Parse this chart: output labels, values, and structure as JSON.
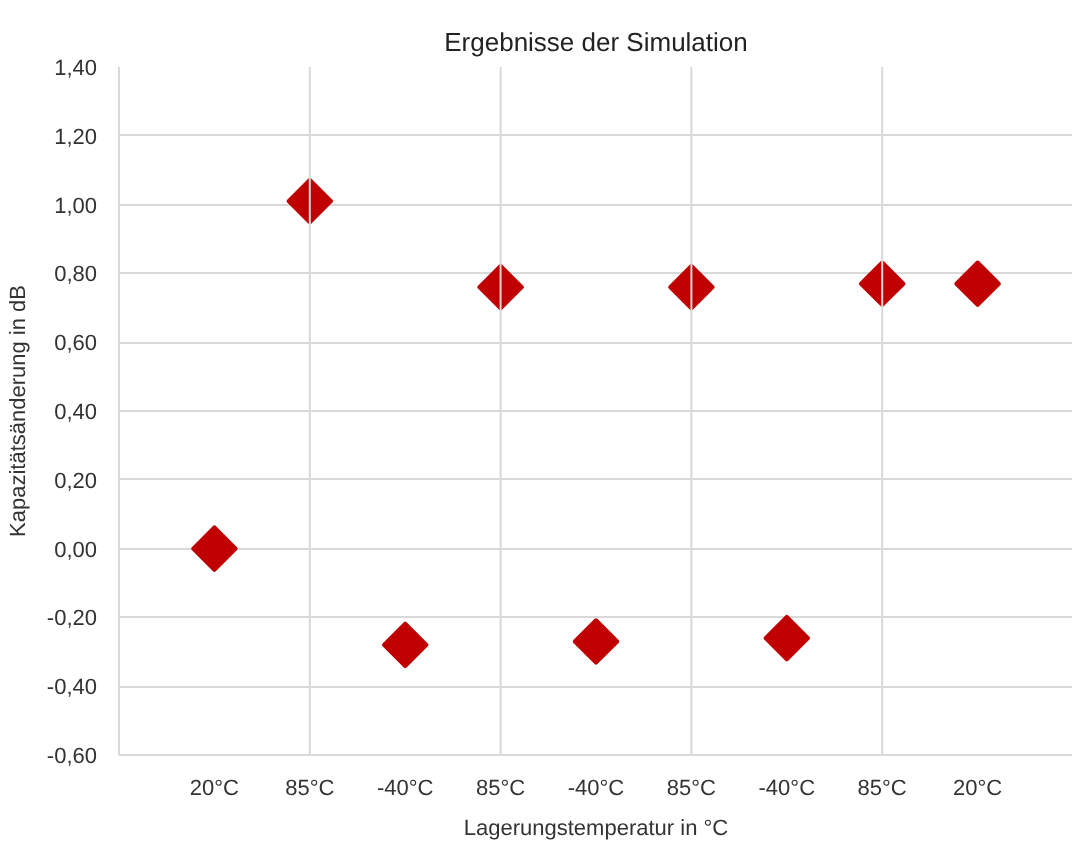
{
  "chart_data": {
    "type": "scatter",
    "title": "Ergebnisse der Simulation",
    "xlabel": "Lagerungstemperatur in °C",
    "ylabel": "Kapazitätsänderung in dB",
    "categories": [
      "20°C",
      "85°C",
      "-40°C",
      "85°C",
      "-40°C",
      "85°C",
      "-40°C",
      "85°C",
      "20°C"
    ],
    "series": [
      {
        "color": "#c00000",
        "values": [
          0.0,
          1.01,
          -0.28,
          0.76,
          -0.27,
          0.76,
          -0.26,
          0.77,
          0.77
        ]
      }
    ],
    "ylim": [
      -0.6,
      1.4
    ],
    "yticks": [
      {
        "value": -0.6,
        "label": "-0,60"
      },
      {
        "value": -0.4,
        "label": "-0,40"
      },
      {
        "value": -0.2,
        "label": "-0,20"
      },
      {
        "value": 0,
        "label": "0,00"
      },
      {
        "value": 0.2,
        "label": "0,20"
      },
      {
        "value": 0.4,
        "label": "0,40"
      },
      {
        "value": 0.6,
        "label": "0,60"
      },
      {
        "value": 0.8,
        "label": "0,80"
      },
      {
        "value": 1.0,
        "label": "1,00"
      },
      {
        "value": 1.2,
        "label": "1,20"
      },
      {
        "value": 1.4,
        "label": "1,40"
      }
    ],
    "grid": true,
    "marker": "diamond"
  }
}
